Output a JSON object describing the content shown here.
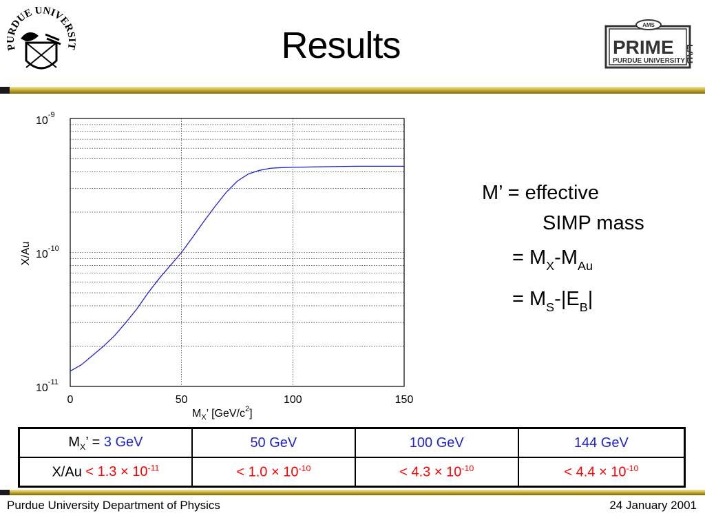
{
  "slide": {
    "title": "Results",
    "logos": {
      "left_text": "PURDUE UNIVERSITY",
      "right_badge": "AMS",
      "right_main": "PRIME",
      "right_side": "LAB",
      "right_bottom": "PURDUE UNIVERSITY"
    }
  },
  "notes": {
    "line1": "M’ = effective",
    "line2": "SIMP mass",
    "eq1": {
      "lead": "= M",
      "sub1": "X",
      "mid": "-M",
      "sub2": "Au"
    },
    "eq2": {
      "lead": "= M",
      "sub1": "S",
      "mid": "-|E",
      "sub2": "B",
      "tail": "|"
    }
  },
  "table": {
    "header": {
      "label_prefix": "M",
      "label_sub": "X",
      "label_suffix": "’ = ",
      "cells": [
        "3 GeV",
        "50 GeV",
        "100 GeV",
        "144 GeV"
      ]
    },
    "row": {
      "label": "X/Au",
      "cells": [
        {
          "mant": "< 1.3 × 10",
          "exp": "-11"
        },
        {
          "mant": "< 1.0 × 10",
          "exp": "-10"
        },
        {
          "mant": "< 4.3 × 10",
          "exp": "-10"
        },
        {
          "mant": "< 4.4 × 10",
          "exp": "-10"
        }
      ]
    }
  },
  "footer": {
    "left": "Purdue University Department of Physics",
    "right": "24 January 2001"
  },
  "colors": {
    "accent_gold": "#b89d1c",
    "curve": "#2222cc",
    "limit_red": "#ff0000",
    "value_blue": "#2222cc"
  },
  "chart_data": {
    "type": "line",
    "x_scale": "linear",
    "y_scale": "log",
    "xlim": [
      0,
      150
    ],
    "ylim": [
      1e-11,
      1e-09
    ],
    "grid": true,
    "xticks": [
      "0",
      "50",
      "100",
      "150"
    ],
    "yticks": [
      {
        "base": "10",
        "exp": "-9",
        "value": 1e-09
      },
      {
        "base": "10",
        "exp": "-10",
        "value": 1e-10
      },
      {
        "base": "10",
        "exp": "-11",
        "value": 1e-11
      }
    ],
    "xlabel": {
      "main": "M",
      "sub": "X",
      "suffix": "’ [GeV/c",
      "sup": "2",
      "end": "]"
    },
    "ylabel": "X/Au",
    "series": [
      {
        "x": [
          0,
          5,
          10,
          15,
          20,
          25,
          30,
          35,
          40,
          45,
          50,
          55,
          60,
          65,
          70,
          75,
          80,
          85,
          90,
          95,
          100,
          110,
          120,
          130,
          140,
          150
        ],
        "y": [
          1.3e-11,
          1.45e-11,
          1.7e-11,
          2e-11,
          2.4e-11,
          3e-11,
          3.8e-11,
          5e-11,
          6.4e-11,
          8e-11,
          1e-10,
          1.3e-10,
          1.7e-10,
          2.2e-10,
          2.8e-10,
          3.4e-10,
          3.85e-10,
          4.1e-10,
          4.25e-10,
          4.3e-10,
          4.32e-10,
          4.35e-10,
          4.38e-10,
          4.4e-10,
          4.4e-10,
          4.4e-10
        ]
      }
    ]
  }
}
